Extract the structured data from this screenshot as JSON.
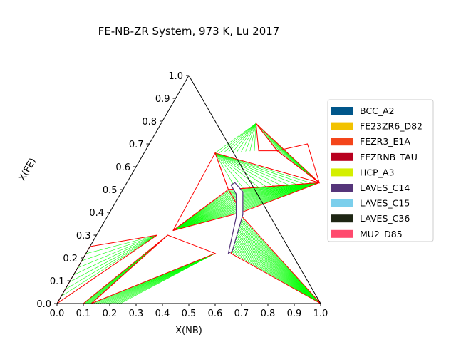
{
  "chart_data": {
    "type": "ternary phase diagram",
    "title": "FE-NB-ZR System, 973 K, Lu 2017",
    "xlabel": "X(NB)",
    "ylabel": "X(FE)",
    "xlim": [
      0,
      1
    ],
    "ylim": [
      0,
      1
    ],
    "ticks": [
      "0.0",
      "0.1",
      "0.2",
      "0.3",
      "0.4",
      "0.5",
      "0.6",
      "0.7",
      "0.8",
      "0.9",
      "1.0"
    ],
    "tie_line_color": "#00ff00",
    "boundary_color": "#ff0000",
    "legend": [
      {
        "name": "BCC_A2",
        "color": "#00568a"
      },
      {
        "name": "FE23ZR6_D82",
        "color": "#f2c200"
      },
      {
        "name": "FEZR3_E1A",
        "color": "#f4451a"
      },
      {
        "name": "FEZRNB_TAU",
        "color": "#b8001f"
      },
      {
        "name": "HCP_A3",
        "color": "#d4ef00"
      },
      {
        "name": "LAVES_C14",
        "color": "#55357a"
      },
      {
        "name": "LAVES_C15",
        "color": "#7bcfec"
      },
      {
        "name": "LAVES_C36",
        "color": "#1e2614"
      },
      {
        "name": "MU2_D85",
        "color": "#ff4a6e"
      }
    ],
    "three_phase_triangles": [
      [
        [
          0.0,
          0.0
        ],
        [
          0.0,
          0.25
        ],
        [
          0.23,
          0.3
        ]
      ],
      [
        [
          0.1,
          0.0
        ],
        [
          0.27,
          0.3
        ],
        [
          0.13,
          0.0
        ]
      ],
      [
        [
          0.13,
          0.0
        ],
        [
          0.27,
          0.3
        ],
        [
          0.49,
          0.22
        ]
      ],
      [
        [
          0.28,
          0.32
        ],
        [
          0.4,
          0.5
        ],
        [
          0.27,
          0.66
        ]
      ],
      [
        [
          0.28,
          0.32
        ],
        [
          0.4,
          0.5
        ],
        [
          0.5,
          0.4
        ]
      ],
      [
        [
          0.4,
          0.5
        ],
        [
          0.5,
          0.4
        ],
        [
          0.73,
          0.53
        ]
      ],
      [
        [
          0.27,
          0.66
        ],
        [
          0.4,
          0.5
        ],
        [
          0.73,
          0.53
        ]
      ],
      [
        [
          0.36,
          0.79
        ],
        [
          0.43,
          0.67
        ],
        [
          0.5,
          0.67
        ]
      ],
      [
        [
          0.36,
          0.79
        ],
        [
          0.5,
          0.67
        ],
        [
          0.73,
          0.53
        ]
      ],
      [
        [
          0.5,
          0.67
        ],
        [
          0.6,
          0.7
        ],
        [
          0.73,
          0.53
        ]
      ],
      [
        [
          0.5,
          0.39
        ],
        [
          0.55,
          0.22
        ],
        [
          1.0,
          0.0
        ]
      ],
      [
        [
          0.1,
          0.0
        ],
        [
          0.9,
          0.0
        ],
        [
          1.0,
          0.0
        ]
      ]
    ],
    "tie_line_fans": [
      {
        "a": [
          [
            0.0,
            0.0
          ],
          [
            0.0,
            0.25
          ]
        ],
        "b": [
          [
            0.23,
            0.3
          ],
          [
            0.23,
            0.3
          ]
        ],
        "n": 8
      },
      {
        "a": [
          [
            0.27,
            0.3
          ],
          [
            0.27,
            0.3
          ]
        ],
        "b": [
          [
            0.13,
            0.0
          ],
          [
            0.1,
            0.0
          ]
        ],
        "n": 8
      },
      {
        "a": [
          [
            0.13,
            0.0
          ],
          [
            0.24,
            0.0
          ]
        ],
        "b": [
          [
            0.49,
            0.22
          ],
          [
            0.49,
            0.22
          ]
        ],
        "n": 14
      },
      {
        "a": [
          [
            0.28,
            0.32
          ],
          [
            0.28,
            0.32
          ]
        ],
        "b": [
          [
            0.4,
            0.5
          ],
          [
            0.5,
            0.4
          ]
        ],
        "n": 24
      },
      {
        "a": [
          [
            0.4,
            0.5
          ],
          [
            0.5,
            0.4
          ]
        ],
        "b": [
          [
            0.73,
            0.53
          ],
          [
            0.73,
            0.53
          ]
        ],
        "n": 26
      },
      {
        "a": [
          [
            0.27,
            0.66
          ],
          [
            0.27,
            0.66
          ]
        ],
        "b": [
          [
            0.4,
            0.5
          ],
          [
            0.73,
            0.53
          ]
        ],
        "n": 12
      },
      {
        "a": [
          [
            0.5,
            0.39
          ],
          [
            0.55,
            0.22
          ]
        ],
        "b": [
          [
            1.0,
            0.0
          ],
          [
            1.0,
            0.0
          ]
        ],
        "n": 26
      },
      {
        "a": [
          [
            0.36,
            0.79
          ],
          [
            0.36,
            0.79
          ]
        ],
        "b": [
          [
            0.27,
            0.66
          ],
          [
            0.43,
            0.67
          ]
        ],
        "n": 10
      },
      {
        "a": [
          [
            0.36,
            0.79
          ],
          [
            0.5,
            0.67
          ]
        ],
        "b": [
          [
            0.73,
            0.53
          ],
          [
            0.73,
            0.53
          ]
        ],
        "n": 8
      }
    ],
    "laves_c14_band": [
      [
        0.4,
        0.52
      ],
      [
        0.44,
        0.48
      ],
      [
        0.49,
        0.38
      ],
      [
        0.54,
        0.22
      ],
      [
        0.55,
        0.23
      ],
      [
        0.51,
        0.39
      ],
      [
        0.46,
        0.49
      ],
      [
        0.41,
        0.53
      ]
    ]
  }
}
